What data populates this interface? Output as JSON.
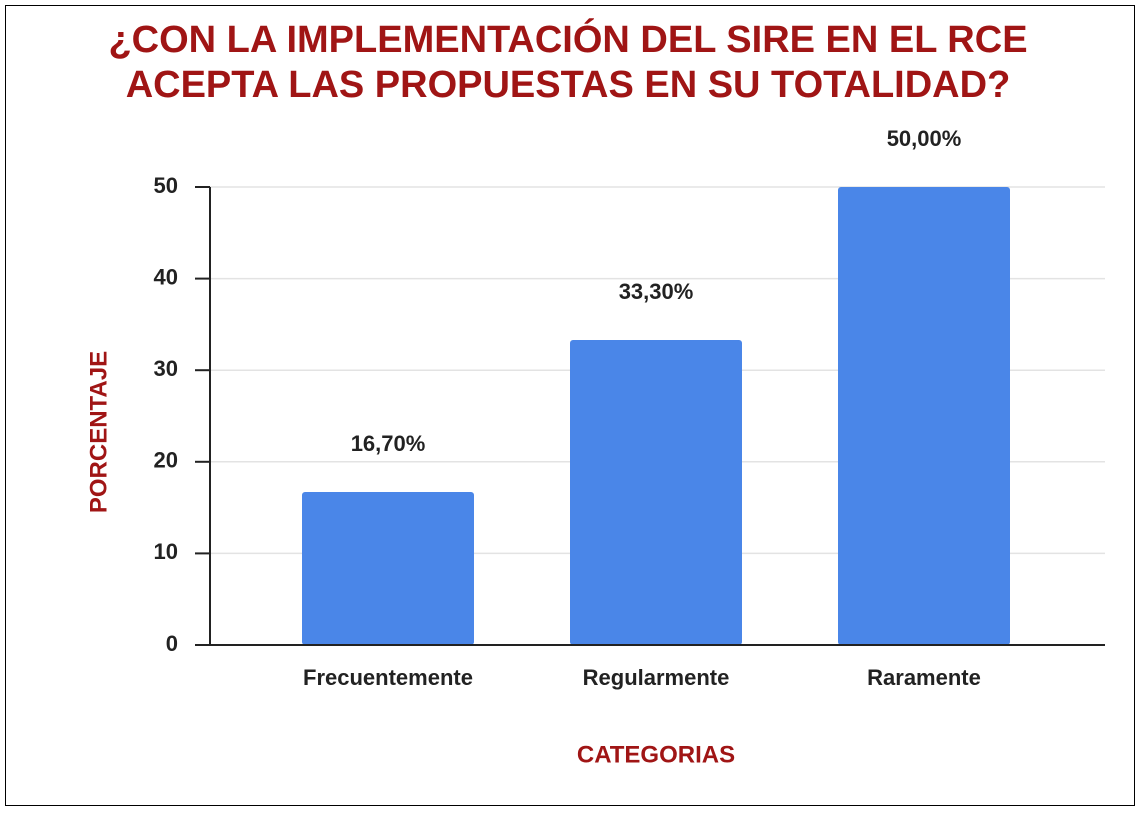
{
  "chart_data": {
    "type": "bar",
    "title": [
      "¿CON LA IMPLEMENTACIÓN  DEL SIRE EN EL RCE",
      "ACEPTA LAS PROPUESTAS EN SU TOTALIDAD?"
    ],
    "x_label": "CATEGORIAS",
    "y_label": "PORCENTAJE",
    "categories": [
      "Frecuentemente",
      "Regularmente",
      "Raramente"
    ],
    "values": [
      16.7,
      33.3,
      50
    ],
    "value_labels": [
      "16,70%",
      "33,30%",
      "50,00%"
    ],
    "color": "#4a86e8",
    "ylim": [
      0,
      50
    ],
    "yticks": [
      0,
      10,
      20,
      30,
      40,
      50
    ],
    "grid": true
  }
}
